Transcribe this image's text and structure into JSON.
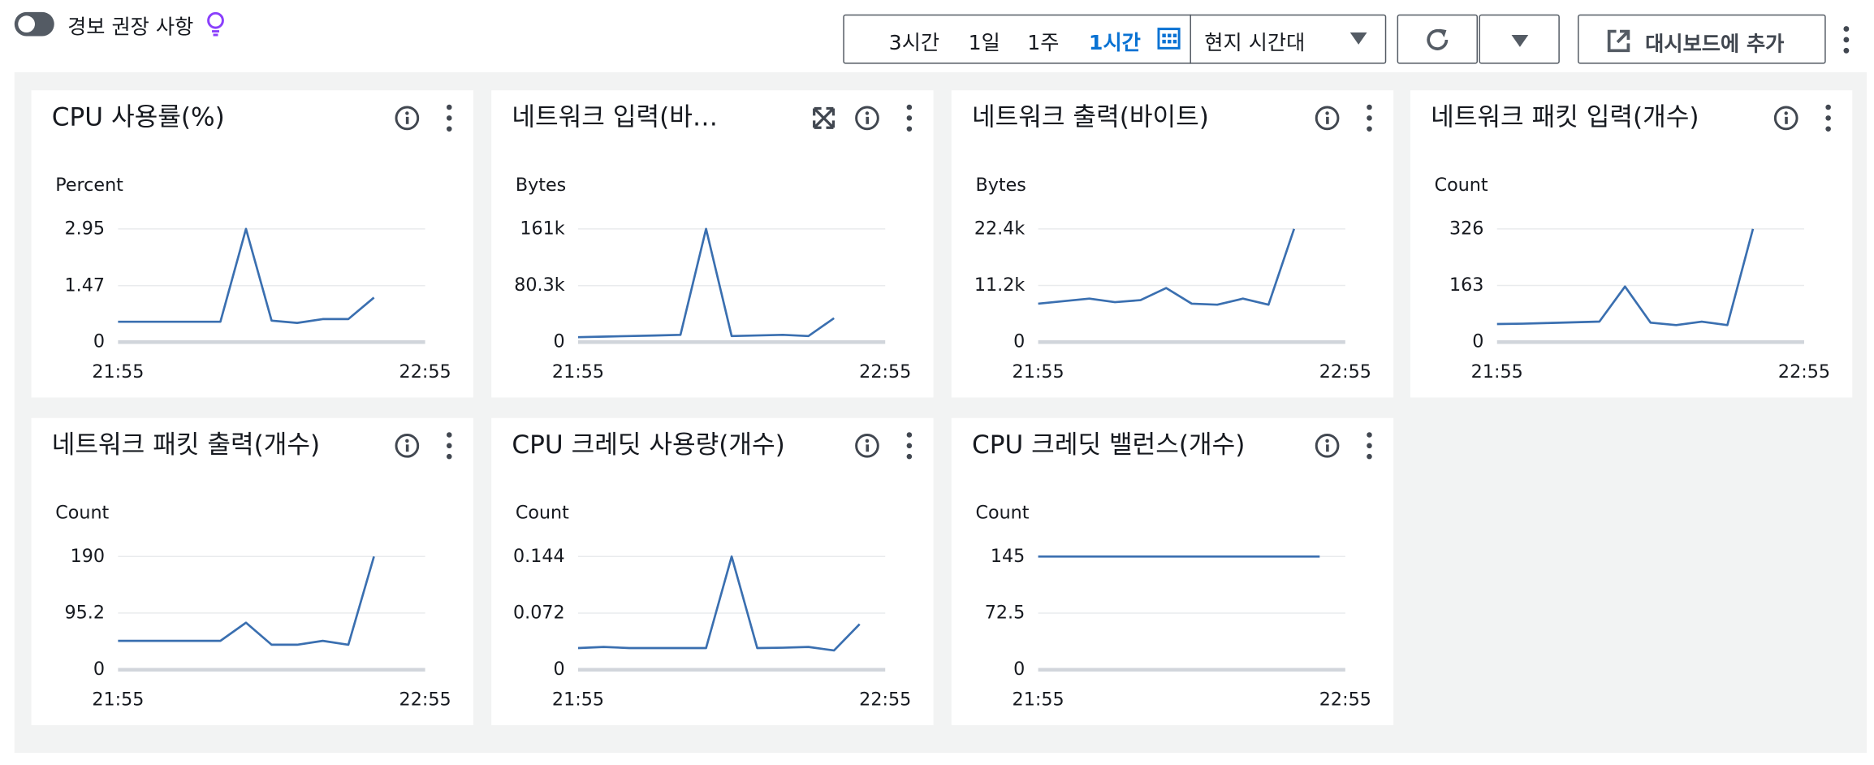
{
  "toolbar": {
    "toggle_label": "경보 권장 사항",
    "ranges": [
      "3시간",
      "1일",
      "1주",
      "1시간"
    ],
    "timezone": "현지 시간대",
    "add_button": "대시보드에 추가"
  },
  "chart_data": [
    {
      "type": "line",
      "title": "CPU 사용률(%)",
      "ylabel": "Percent",
      "color": "#3a6fb0",
      "x": [
        "21:55",
        "22:00",
        "22:05",
        "22:10",
        "22:15",
        "22:20",
        "22:25",
        "22:30",
        "22:35",
        "22:40",
        "22:45"
      ],
      "values": [
        0.53,
        0.53,
        0.53,
        0.53,
        0.53,
        2.95,
        0.56,
        0.5,
        0.6,
        0.6,
        1.16
      ],
      "xlim": [
        "21:55",
        "22:55"
      ],
      "xticks": [
        "21:55",
        "22:55"
      ],
      "ylim": [
        0,
        2.95
      ],
      "yticks": [
        0,
        1.47,
        2.95
      ]
    },
    {
      "type": "line",
      "title": "네트워크 입력(바…",
      "ylabel": "Bytes",
      "color": "#3a6fb0",
      "x": [
        "21:55",
        "22:00",
        "22:05",
        "22:10",
        "22:15",
        "22:20",
        "22:25",
        "22:30",
        "22:35",
        "22:40",
        "22:45"
      ],
      "values": [
        7000,
        7800,
        8600,
        9400,
        10300,
        161000,
        8600,
        9500,
        10300,
        8600,
        34000
      ],
      "xlim": [
        "21:55",
        "22:55"
      ],
      "xticks": [
        "21:55",
        "22:55"
      ],
      "ylim": [
        0,
        161000
      ],
      "yticks": [
        0,
        {
          "value": 80300,
          "label": "80.3k"
        },
        {
          "value": 161000,
          "label": "161k"
        }
      ]
    },
    {
      "type": "line",
      "title": "네트워크 출력(바이트)",
      "ylabel": "Bytes",
      "color": "#3a6fb0",
      "x": [
        "21:55",
        "22:00",
        "22:05",
        "22:10",
        "22:15",
        "22:20",
        "22:25",
        "22:30",
        "22:35",
        "22:40",
        "22:45"
      ],
      "values": [
        7600,
        8100,
        8600,
        7900,
        8300,
        10700,
        7600,
        7400,
        8600,
        7400,
        22400
      ],
      "xlim": [
        "21:55",
        "22:55"
      ],
      "xticks": [
        "21:55",
        "22:55"
      ],
      "ylim": [
        0,
        22400
      ],
      "yticks": [
        0,
        {
          "value": 11200,
          "label": "11.2k"
        },
        {
          "value": 22400,
          "label": "22.4k"
        }
      ]
    },
    {
      "type": "line",
      "title": "네트워크 패킷 입력(개수)",
      "ylabel": "Count",
      "color": "#3a6fb0",
      "x": [
        "21:55",
        "22:00",
        "22:05",
        "22:10",
        "22:15",
        "22:20",
        "22:25",
        "22:30",
        "22:35",
        "22:40",
        "22:45"
      ],
      "values": [
        52,
        53,
        55,
        57,
        59,
        160,
        56,
        49,
        59,
        49,
        326
      ],
      "xlim": [
        "21:55",
        "22:55"
      ],
      "xticks": [
        "21:55",
        "22:55"
      ],
      "ylim": [
        0,
        326
      ],
      "yticks": [
        0,
        163,
        326
      ]
    },
    {
      "type": "line",
      "title": "네트워크 패킷 출력(개수)",
      "ylabel": "Count",
      "color": "#3a6fb0",
      "x": [
        "21:55",
        "22:00",
        "22:05",
        "22:10",
        "22:15",
        "22:20",
        "22:25",
        "22:30",
        "22:35",
        "22:40",
        "22:45"
      ],
      "values": [
        48.5,
        48.5,
        48.5,
        48.5,
        48.5,
        79,
        42,
        42,
        48.5,
        42,
        190
      ],
      "xlim": [
        "21:55",
        "22:55"
      ],
      "xticks": [
        "21:55",
        "22:55"
      ],
      "ylim": [
        0,
        190
      ],
      "yticks": [
        0,
        95.2,
        190
      ]
    },
    {
      "type": "line",
      "title": "CPU 크레딧 사용량(개수)",
      "ylabel": "Count",
      "color": "#3a6fb0",
      "x": [
        "21:55",
        "22:00",
        "22:05",
        "22:10",
        "22:15",
        "22:20",
        "22:25",
        "22:30",
        "22:35",
        "22:40",
        "22:45",
        "22:50"
      ],
      "values": [
        0.0276,
        0.029,
        0.0276,
        0.0276,
        0.0276,
        0.0276,
        0.144,
        0.0276,
        0.028,
        0.029,
        0.0245,
        0.058
      ],
      "xlim": [
        "21:55",
        "22:55"
      ],
      "xticks": [
        "21:55",
        "22:55"
      ],
      "ylim": [
        0,
        0.144
      ],
      "yticks": [
        0,
        0.072,
        0.144
      ]
    },
    {
      "type": "line",
      "title": "CPU 크레딧 밸런스(개수)",
      "ylabel": "Count",
      "color": "#3a6fb0",
      "x": [
        "21:55",
        "22:00",
        "22:05",
        "22:10",
        "22:15",
        "22:20",
        "22:25",
        "22:30",
        "22:35",
        "22:40",
        "22:45",
        "22:50"
      ],
      "values": [
        145,
        145,
        145,
        145,
        145,
        145,
        145,
        145,
        145,
        145,
        145,
        145
      ],
      "xlim": [
        "21:55",
        "22:55"
      ],
      "xticks": [
        "21:55",
        "22:55"
      ],
      "ylim": [
        0,
        145
      ],
      "yticks": [
        0,
        72.5,
        145
      ]
    }
  ]
}
